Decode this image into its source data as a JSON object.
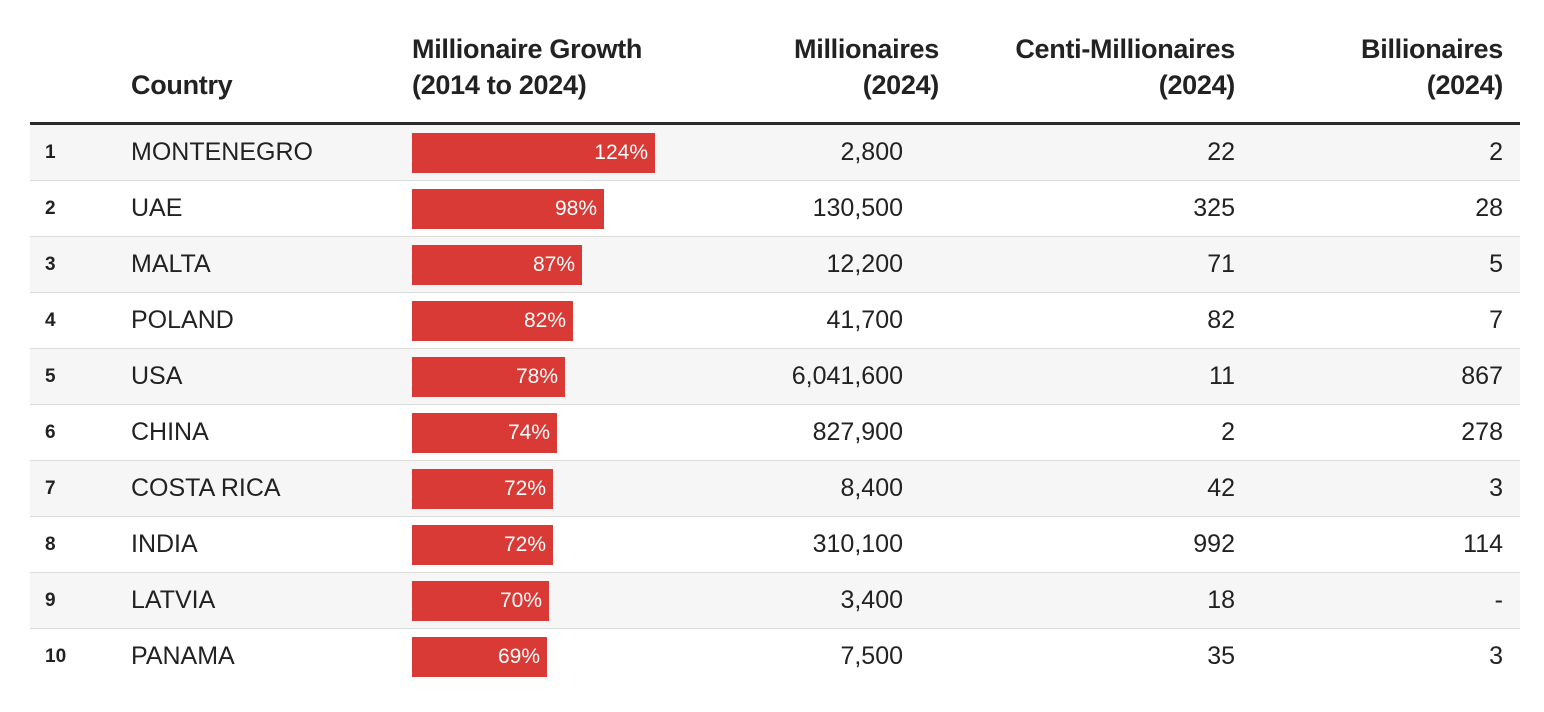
{
  "chart_data": {
    "type": "table",
    "columns": [
      "",
      "Country",
      "Millionaire Growth\n(2014 to 2024)",
      "Millionaires\n(2024)",
      "Centi-Millionaires\n(2024)",
      "Billionaires\n(2024)"
    ],
    "growth_max": 124,
    "rows": [
      {
        "rank": "1",
        "country": "MONTENEGRO",
        "growth": 124,
        "growth_label": "124%",
        "millionaires": "2,800",
        "centi": "22",
        "billionaires": "2"
      },
      {
        "rank": "2",
        "country": "UAE",
        "growth": 98,
        "growth_label": "98%",
        "millionaires": "130,500",
        "centi": "325",
        "billionaires": "28"
      },
      {
        "rank": "3",
        "country": "MALTA",
        "growth": 87,
        "growth_label": "87%",
        "millionaires": "12,200",
        "centi": "71",
        "billionaires": "5"
      },
      {
        "rank": "4",
        "country": "POLAND",
        "growth": 82,
        "growth_label": "82%",
        "millionaires": "41,700",
        "centi": "82",
        "billionaires": "7"
      },
      {
        "rank": "5",
        "country": "USA",
        "growth": 78,
        "growth_label": "78%",
        "millionaires": "6,041,600",
        "centi": "11",
        "billionaires": "867"
      },
      {
        "rank": "6",
        "country": "CHINA",
        "growth": 74,
        "growth_label": "74%",
        "millionaires": "827,900",
        "centi": "2",
        "billionaires": "278"
      },
      {
        "rank": "7",
        "country": "COSTA RICA",
        "growth": 72,
        "growth_label": "72%",
        "millionaires": "8,400",
        "centi": "42",
        "billionaires": "3"
      },
      {
        "rank": "8",
        "country": "INDIA",
        "growth": 72,
        "growth_label": "72%",
        "millionaires": "310,100",
        "centi": "992",
        "billionaires": "114"
      },
      {
        "rank": "9",
        "country": "LATVIA",
        "growth": 70,
        "growth_label": "70%",
        "millionaires": "3,400",
        "centi": "18",
        "billionaires": "-"
      },
      {
        "rank": "10",
        "country": "PANAMA",
        "growth": 69,
        "growth_label": "69%",
        "millionaires": "7,500",
        "centi": "35",
        "billionaires": "3"
      }
    ],
    "colors": {
      "bar": "#d93a35",
      "bar_text": "#ffffff",
      "stripe": "#f6f6f6",
      "rule": "#2a2a2a"
    }
  }
}
